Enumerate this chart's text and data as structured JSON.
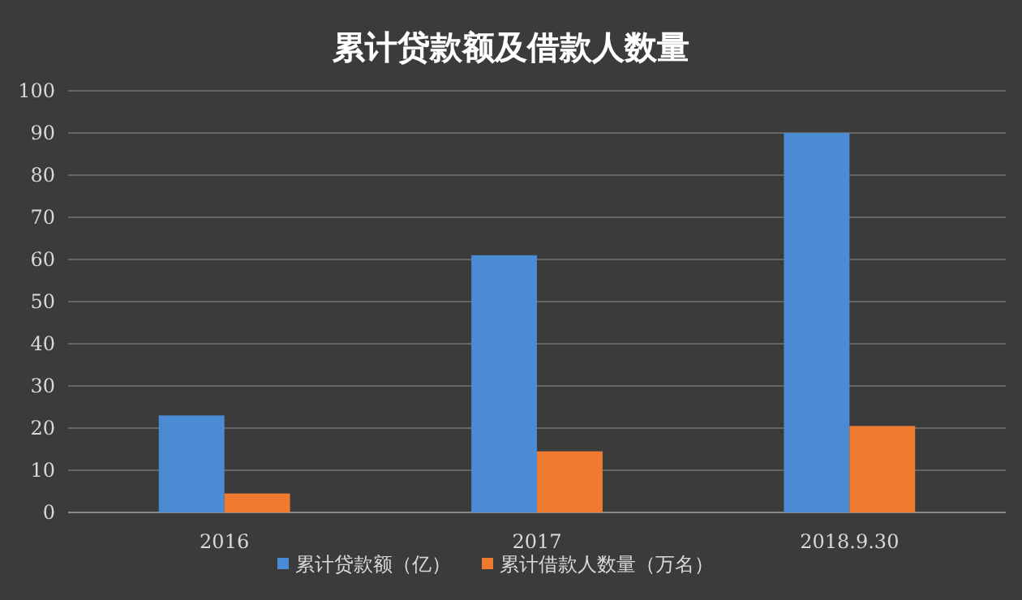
{
  "chart_data": {
    "type": "bar",
    "title": "累计贷款额及借款人数量",
    "categories": [
      "2016",
      "2017",
      "2018.9.30"
    ],
    "series": [
      {
        "name": "累计贷款额（亿）",
        "color": "#4a8bd4",
        "values": [
          23,
          61,
          90
        ]
      },
      {
        "name": "累计借款人数量（万名）",
        "color": "#ee7b30",
        "values": [
          4.5,
          14.5,
          20.5
        ]
      }
    ],
    "ylim": [
      0,
      100
    ],
    "yticks": [
      0,
      10,
      20,
      30,
      40,
      50,
      60,
      70,
      80,
      90,
      100
    ],
    "grid": "y",
    "legend": "bottom"
  }
}
